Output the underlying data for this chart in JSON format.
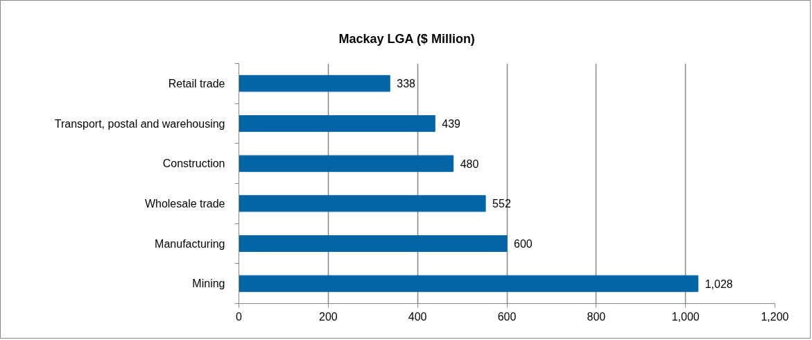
{
  "chart_data": {
    "type": "bar",
    "orientation": "horizontal",
    "title": "Mackay LGA ($ Million)",
    "categories": [
      "Retail trade",
      "Transport, postal and warehousing",
      "Construction",
      "Wholesale trade",
      "Manufacturing",
      "Mining"
    ],
    "values": [
      338,
      439,
      480,
      552,
      600,
      1028
    ],
    "color": "#0465a6",
    "value_labels": [
      "338",
      "439",
      "480",
      "552",
      "600",
      "1,028"
    ],
    "xlim": [
      0,
      1200
    ],
    "xticks": [
      0,
      200,
      400,
      600,
      800,
      {
        "value": 1000,
        "label": "1,000"
      },
      {
        "value": 1200,
        "label": "1,200"
      }
    ],
    "grid": "x"
  }
}
